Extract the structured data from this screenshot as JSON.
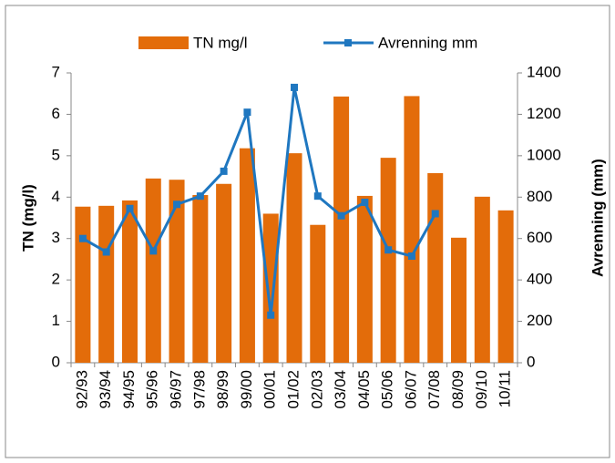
{
  "chart_data": {
    "type": "bar-line",
    "categories": [
      "92/93",
      "93/94",
      "94/95",
      "95/96",
      "96/97",
      "97/98",
      "98/99",
      "99/00",
      "00/01",
      "01/02",
      "02/03",
      "03/04",
      "04/05",
      "05/06",
      "06/07",
      "07/08",
      "08/09",
      "09/10",
      "10/11"
    ],
    "series": [
      {
        "name": "TN mg/l",
        "color": "#e36c0a",
        "type": "bar",
        "values": [
          3.77,
          3.79,
          3.92,
          4.45,
          4.42,
          4.05,
          4.32,
          5.18,
          3.6,
          5.06,
          3.33,
          6.43,
          4.03,
          4.95,
          6.44,
          4.58,
          3.02,
          4.01,
          3.68
        ]
      },
      {
        "name": "Avrenning mm",
        "color": "#1f77c0",
        "type": "line",
        "axis": "y2",
        "values": [
          600,
          535,
          745,
          540,
          765,
          805,
          925,
          1210,
          230,
          1330,
          805,
          710,
          775,
          545,
          515,
          720,
          null,
          null,
          null
        ]
      }
    ],
    "y_label": "TN (mg/l)",
    "y2_label": "Avrenning (mm)",
    "ylim": [
      0,
      7
    ],
    "yticks": [
      0,
      1,
      2,
      3,
      4,
      5,
      6,
      7
    ],
    "y2lim": [
      0,
      1400
    ],
    "y2ticks": [
      0,
      200,
      400,
      600,
      800,
      1000,
      1200,
      1400
    ],
    "legend": "top"
  }
}
